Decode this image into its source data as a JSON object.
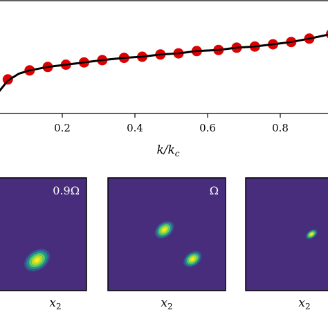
{
  "chart_data": [
    {
      "type": "line",
      "xlabel": "k/k_c",
      "x_ticks": [
        "0.2",
        "0.4",
        "0.6",
        "0.8"
      ],
      "xlim": [
        0.0,
        1.0
      ],
      "ylim": [
        0.0,
        1.0
      ],
      "series": [
        {
          "marker": "circle",
          "color": "#dd0000",
          "x": [
            0.0,
            0.05,
            0.11,
            0.16,
            0.21,
            0.26,
            0.31,
            0.37,
            0.42,
            0.47,
            0.52,
            0.57,
            0.63,
            0.68,
            0.73,
            0.78,
            0.83,
            0.88,
            0.94,
            0.99
          ],
          "y": [
            0.08,
            0.3,
            0.38,
            0.41,
            0.43,
            0.45,
            0.47,
            0.49,
            0.5,
            0.52,
            0.53,
            0.55,
            0.56,
            0.58,
            0.59,
            0.61,
            0.63,
            0.66,
            0.7,
            0.76
          ]
        },
        {
          "line_style": "solid",
          "color": "#000000",
          "x": [
            -0.01,
            0.02,
            0.05,
            0.08,
            0.11,
            0.16,
            0.21,
            0.26,
            0.31,
            0.37,
            0.42,
            0.47,
            0.52,
            0.57,
            0.63,
            0.68,
            0.73,
            0.78,
            0.83,
            0.88,
            0.94,
            0.99,
            1.0
          ],
          "y": [
            0.06,
            0.17,
            0.29,
            0.35,
            0.38,
            0.41,
            0.43,
            0.45,
            0.47,
            0.49,
            0.5,
            0.52,
            0.53,
            0.55,
            0.56,
            0.58,
            0.59,
            0.61,
            0.63,
            0.66,
            0.7,
            0.75,
            0.77
          ]
        }
      ]
    },
    {
      "type": "heatmap",
      "colormap": "viridis",
      "xlabel": "x_2",
      "annotation": "0.9Ω",
      "blobs": [
        {
          "cx": 0.11,
          "cy": 0.4,
          "rx": 0.28,
          "ry": 0.18,
          "rotation_deg": -40
        },
        {
          "cx": 0.58,
          "cy": 0.73,
          "rx": 0.24,
          "ry": 0.17,
          "rotation_deg": -35
        }
      ]
    },
    {
      "type": "heatmap",
      "colormap": "viridis",
      "xlabel": "x_2",
      "annotation": "Ω",
      "blobs": [
        {
          "cx": 0.48,
          "cy": 0.46,
          "rx": 0.18,
          "ry": 0.13,
          "rotation_deg": -38
        },
        {
          "cx": 0.72,
          "cy": 0.72,
          "rx": 0.17,
          "ry": 0.12,
          "rotation_deg": -35
        }
      ]
    },
    {
      "type": "heatmap",
      "colormap": "viridis",
      "xlabel": "x_2",
      "annotation": "",
      "blobs": [
        {
          "cx": 0.56,
          "cy": 0.5,
          "rx": 0.11,
          "ry": 0.07,
          "rotation_deg": -35
        },
        {
          "cx": 0.75,
          "cy": 0.68,
          "rx": 0.12,
          "ry": 0.08,
          "rotation_deg": -40
        }
      ]
    }
  ]
}
